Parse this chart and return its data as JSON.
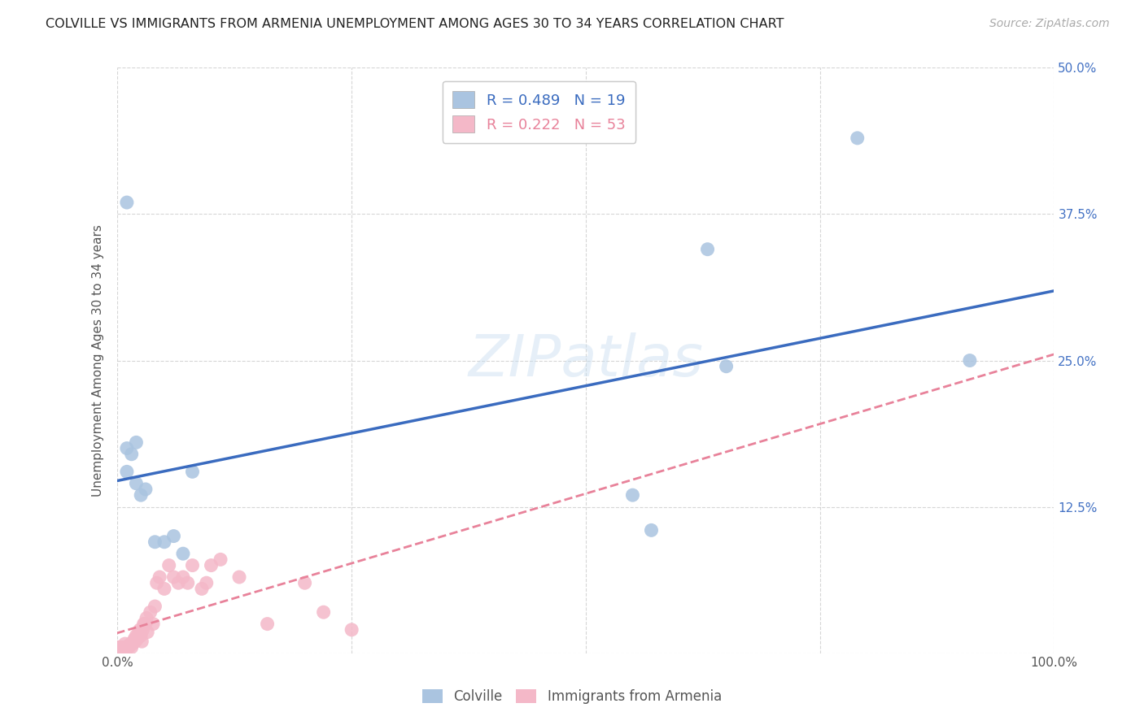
{
  "title": "COLVILLE VS IMMIGRANTS FROM ARMENIA UNEMPLOYMENT AMONG AGES 30 TO 34 YEARS CORRELATION CHART",
  "source": "Source: ZipAtlas.com",
  "ylabel": "Unemployment Among Ages 30 to 34 years",
  "xlim": [
    0,
    1
  ],
  "ylim": [
    0,
    0.5
  ],
  "x_ticks": [
    0.0,
    0.25,
    0.5,
    0.75,
    1.0
  ],
  "x_tick_labels": [
    "0.0%",
    "",
    "",
    "",
    "100.0%"
  ],
  "y_ticks": [
    0.0,
    0.125,
    0.25,
    0.375,
    0.5
  ],
  "y_tick_labels_right": [
    "",
    "12.5%",
    "25.0%",
    "37.5%",
    "50.0%"
  ],
  "background_color": "#ffffff",
  "grid_color": "#cccccc",
  "colville_color": "#aac4e0",
  "armenia_color": "#f4b8c8",
  "colville_line_color": "#3a6bbf",
  "armenia_line_color": "#e8829a",
  "colville_R": 0.489,
  "colville_N": 19,
  "armenia_R": 0.222,
  "armenia_N": 53,
  "colville_x": [
    0.01,
    0.01,
    0.01,
    0.015,
    0.02,
    0.02,
    0.025,
    0.03,
    0.04,
    0.05,
    0.06,
    0.07,
    0.08,
    0.55,
    0.57,
    0.63,
    0.65,
    0.79,
    0.91
  ],
  "colville_y": [
    0.385,
    0.175,
    0.155,
    0.17,
    0.18,
    0.145,
    0.135,
    0.14,
    0.095,
    0.095,
    0.1,
    0.085,
    0.155,
    0.135,
    0.105,
    0.345,
    0.245,
    0.44,
    0.25
  ],
  "armenia_x": [
    0.001,
    0.002,
    0.003,
    0.004,
    0.005,
    0.006,
    0.007,
    0.008,
    0.009,
    0.01,
    0.011,
    0.012,
    0.013,
    0.014,
    0.015,
    0.016,
    0.017,
    0.018,
    0.019,
    0.02,
    0.021,
    0.022,
    0.023,
    0.024,
    0.025,
    0.026,
    0.027,
    0.028,
    0.029,
    0.03,
    0.031,
    0.032,
    0.035,
    0.038,
    0.04,
    0.042,
    0.045,
    0.05,
    0.055,
    0.06,
    0.065,
    0.07,
    0.075,
    0.08,
    0.09,
    0.095,
    0.1,
    0.11,
    0.13,
    0.16,
    0.2,
    0.22,
    0.25
  ],
  "armenia_y": [
    0.005,
    0.005,
    0.005,
    0.003,
    0.003,
    0.003,
    0.005,
    0.008,
    0.004,
    0.005,
    0.005,
    0.005,
    0.007,
    0.008,
    0.005,
    0.008,
    0.01,
    0.012,
    0.01,
    0.015,
    0.012,
    0.015,
    0.018,
    0.02,
    0.015,
    0.01,
    0.02,
    0.025,
    0.025,
    0.025,
    0.03,
    0.018,
    0.035,
    0.025,
    0.04,
    0.06,
    0.065,
    0.055,
    0.075,
    0.065,
    0.06,
    0.065,
    0.06,
    0.075,
    0.055,
    0.06,
    0.075,
    0.08,
    0.065,
    0.025,
    0.06,
    0.035,
    0.02
  ]
}
